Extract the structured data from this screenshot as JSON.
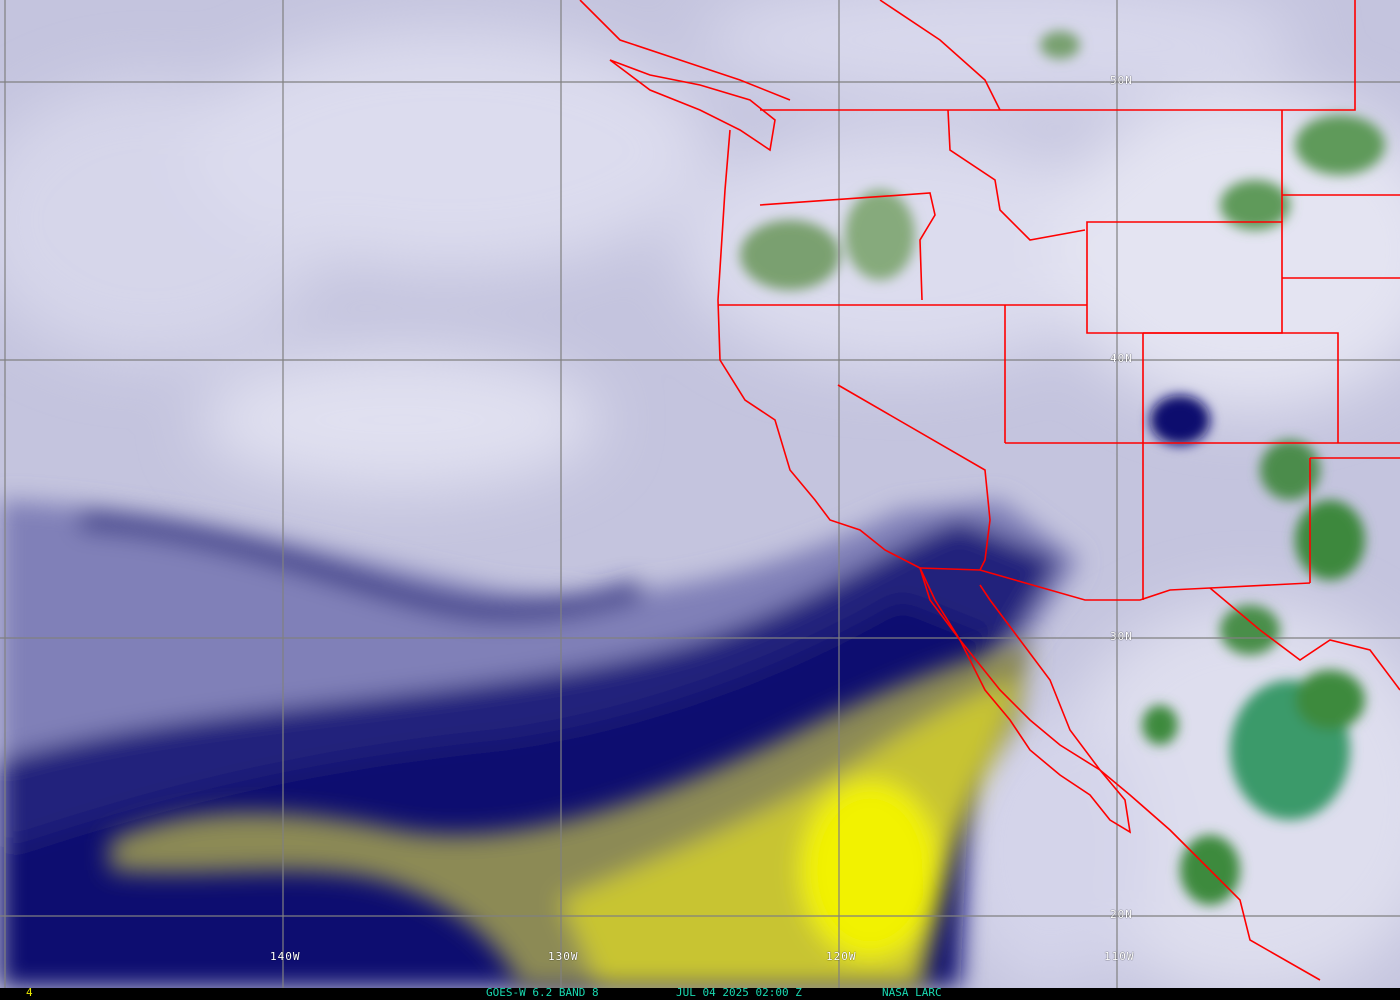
{
  "image": {
    "satellite_product": "GOES-W 6.2 BAND 8",
    "datetime": "JUL 04 2025 02:00 Z",
    "source": "NASA LARC",
    "frame_number": "4"
  },
  "grid": {
    "longitude_labels": [
      "140W",
      "130W",
      "120W",
      "110W"
    ],
    "latitude_labels": [
      "50N",
      "40N",
      "30N",
      "20N"
    ]
  },
  "colors": {
    "boundaries": "#ff0000",
    "gridlines": "#808080",
    "dry_air": "#e0e000",
    "moist_air_dark": "#10106e",
    "background_moisture": "#c4c4de",
    "deep_clouds": "#3c8a3c",
    "status_text": "#19d8b0"
  }
}
